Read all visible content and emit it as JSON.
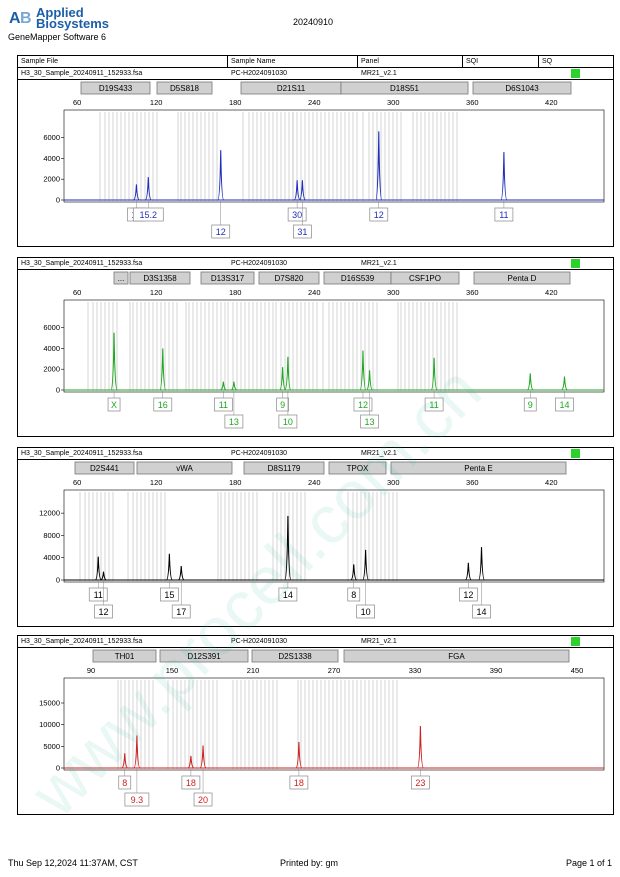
{
  "header": {
    "logo_line1": "Applied",
    "logo_line2": "Biosystems",
    "app_name": "GeneMapper Software 6",
    "date": "20240910",
    "columns": [
      "Sample File",
      "Sample Name",
      "Panel",
      "SQI",
      "SQ"
    ]
  },
  "footer": {
    "date": "Thu Sep 12,2024 11:37AM, CST",
    "printed": "Printed by: gm",
    "page": "Page 1 of 1"
  },
  "watermark": "www.procell.com.cn",
  "panels": [
    {
      "sample_file": "H3_30_Sample_20240911_152933.fsa",
      "sample_name": "PC-H2024091030",
      "panel": "MR21_v2.1",
      "color": "#1f2fb8",
      "loci": [
        "D19S433",
        "D5S818",
        "D21S11",
        "D18S51",
        "D6S1043"
      ],
      "alleles": [
        "13",
        "15.2",
        "12",
        "30",
        "31",
        "12",
        "11"
      ]
    },
    {
      "sample_file": "H3_30_Sample_20240911_152933.fsa",
      "sample_name": "PC-H2024091030",
      "panel": "MR21_v2.1",
      "color": "#21a621",
      "loci": [
        "...",
        "D3S1358",
        "D13S317",
        "D7S820",
        "D16S539",
        "CSF1PO",
        "Penta D"
      ],
      "alleles": [
        "X",
        "16",
        "11",
        "13",
        "9",
        "10",
        "12",
        "13",
        "11",
        "9",
        "14"
      ]
    },
    {
      "sample_file": "H3_30_Sample_20240911_152933.fsa",
      "sample_name": "PC-H2024091030",
      "panel": "MR21_v2.1",
      "color": "#000000",
      "loci": [
        "D2S441",
        "vWA",
        "D8S1179",
        "TPOX",
        "Penta E"
      ],
      "alleles": [
        "11",
        "12",
        "15",
        "17",
        "14",
        "8",
        "10",
        "12",
        "14"
      ]
    },
    {
      "sample_file": "H3_30_Sample_20240911_152933.fsa",
      "sample_name": "PC-H2024091030",
      "panel": "MR21_v2.1",
      "color": "#cc2222",
      "loci": [
        "TH01",
        "D12S391",
        "D2S1338",
        "FGA"
      ],
      "alleles": [
        "8",
        "9.3",
        "18",
        "20",
        "18",
        "23"
      ]
    }
  ],
  "chart_data": [
    {
      "type": "line",
      "title": "",
      "xlabel": "",
      "ylabel": "",
      "xlim": [
        50,
        460
      ],
      "ylim": [
        0,
        7500
      ],
      "xticks": [
        60,
        120,
        180,
        240,
        300,
        360,
        420
      ],
      "yticks": [
        0,
        2000,
        4000,
        6000
      ],
      "series": [
        {
          "color": "#1f2fb8",
          "peaks": [
            {
              "x": 105,
              "y": 1500,
              "allele": "13"
            },
            {
              "x": 114,
              "y": 2200,
              "allele": "15.2"
            },
            {
              "x": 169,
              "y": 4800,
              "allele": "12"
            },
            {
              "x": 227,
              "y": 1900,
              "allele": "30"
            },
            {
              "x": 231,
              "y": 1900,
              "allele": "31"
            },
            {
              "x": 289,
              "y": 6600,
              "allele": "12"
            },
            {
              "x": 384,
              "y": 4600,
              "allele": "11"
            }
          ]
        }
      ]
    },
    {
      "type": "line",
      "title": "",
      "xlabel": "",
      "ylabel": "",
      "xlim": [
        50,
        460
      ],
      "ylim": [
        0,
        7500
      ],
      "xticks": [
        60,
        120,
        180,
        240,
        300,
        360,
        420
      ],
      "yticks": [
        0,
        2000,
        4000,
        6000
      ],
      "series": [
        {
          "color": "#21a621",
          "peaks": [
            {
              "x": 88,
              "y": 5500,
              "allele": "X"
            },
            {
              "x": 125,
              "y": 4000,
              "allele": "16"
            },
            {
              "x": 171,
              "y": 800,
              "allele": "11"
            },
            {
              "x": 179,
              "y": 800,
              "allele": "13"
            },
            {
              "x": 216,
              "y": 2200,
              "allele": "9"
            },
            {
              "x": 220,
              "y": 3200,
              "allele": "10"
            },
            {
              "x": 277,
              "y": 3800,
              "allele": "12"
            },
            {
              "x": 282,
              "y": 1900,
              "allele": "13"
            },
            {
              "x": 331,
              "y": 3100,
              "allele": "11"
            },
            {
              "x": 404,
              "y": 1600,
              "allele": "9"
            },
            {
              "x": 430,
              "y": 1300,
              "allele": "14"
            }
          ]
        }
      ]
    },
    {
      "type": "line",
      "title": "",
      "xlabel": "",
      "ylabel": "",
      "xlim": [
        50,
        460
      ],
      "ylim": [
        0,
        14000
      ],
      "xticks": [
        60,
        120,
        180,
        240,
        300,
        360,
        420
      ],
      "yticks": [
        0,
        4000,
        8000,
        12000
      ],
      "series": [
        {
          "color": "#000000",
          "peaks": [
            {
              "x": 76,
              "y": 4200,
              "allele": "11"
            },
            {
              "x": 80,
              "y": 1500,
              "allele": "12"
            },
            {
              "x": 130,
              "y": 4700,
              "allele": "15"
            },
            {
              "x": 139,
              "y": 2500,
              "allele": "17"
            },
            {
              "x": 220,
              "y": 11500,
              "allele": "14"
            },
            {
              "x": 270,
              "y": 2800,
              "allele": "8"
            },
            {
              "x": 279,
              "y": 5400,
              "allele": "10"
            },
            {
              "x": 357,
              "y": 3100,
              "allele": "12"
            },
            {
              "x": 367,
              "y": 5900,
              "allele": "14"
            }
          ]
        }
      ]
    },
    {
      "type": "line",
      "title": "",
      "xlabel": "",
      "ylabel": "",
      "xlim": [
        70,
        470
      ],
      "ylim": [
        0,
        18000
      ],
      "xticks": [
        90,
        150,
        210,
        270,
        330,
        390,
        450
      ],
      "yticks": [
        0,
        5000,
        10000,
        15000
      ],
      "series": [
        {
          "color": "#cc2222",
          "peaks": [
            {
              "x": 115,
              "y": 3400,
              "allele": "8"
            },
            {
              "x": 124,
              "y": 7500,
              "allele": "9.3"
            },
            {
              "x": 164,
              "y": 2800,
              "allele": "18"
            },
            {
              "x": 173,
              "y": 5200,
              "allele": "20"
            },
            {
              "x": 244,
              "y": 6000,
              "allele": "18"
            },
            {
              "x": 334,
              "y": 9700,
              "allele": "23"
            }
          ]
        }
      ]
    }
  ]
}
